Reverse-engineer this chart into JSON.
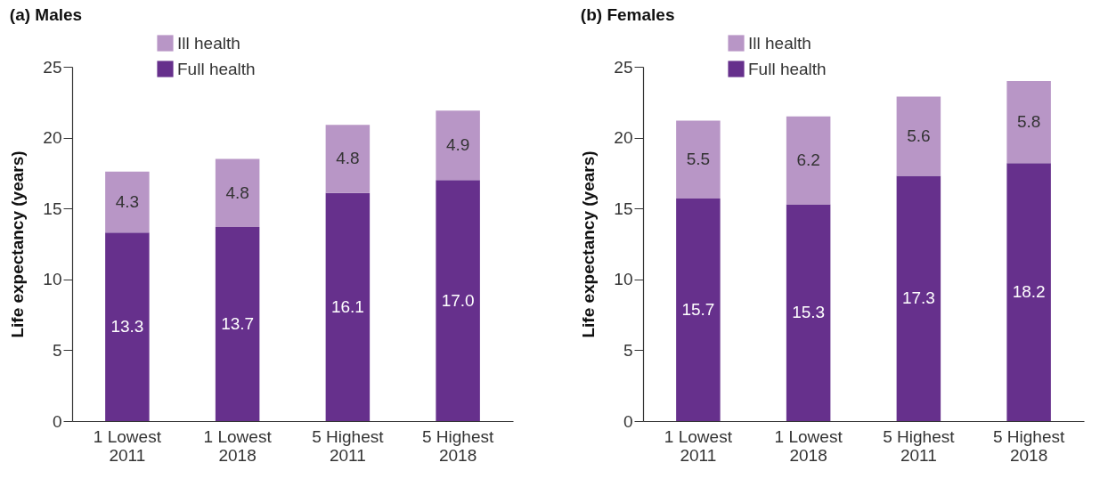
{
  "chart_data": [
    {
      "type": "bar",
      "title": "(a) Males",
      "ylabel": "Life expectancy (years)",
      "categories": [
        "1 Lowest\n2011",
        "1 Lowest\n2018",
        "5 Highest\n2011",
        "5 Highest\n2018"
      ],
      "stacked": true,
      "legend": "top left",
      "ylim": [
        0,
        25
      ],
      "yticks": [
        0,
        5,
        10,
        15,
        20,
        25
      ],
      "series": [
        {
          "name": "Full health",
          "color": "#66308c",
          "values": [
            13.3,
            13.7,
            16.1,
            17.0
          ],
          "value_labels": [
            "13.3",
            "13.7",
            "16.1",
            "17.0"
          ]
        },
        {
          "name": "Ill health",
          "color": "#b896c6",
          "values": [
            4.3,
            4.8,
            4.8,
            4.9
          ],
          "value_labels": [
            "4.3",
            "4.8",
            "4.8",
            "4.9"
          ]
        }
      ]
    },
    {
      "type": "bar",
      "title": "(b) Females",
      "ylabel": "Life expectancy (years)",
      "categories": [
        "1 Lowest\n2011",
        "1 Lowest\n2018",
        "5 Highest\n2011",
        "5 Highest\n2018"
      ],
      "stacked": true,
      "legend": "top left",
      "ylim": [
        0,
        25
      ],
      "yticks": [
        0,
        5,
        10,
        15,
        20,
        25
      ],
      "series": [
        {
          "name": "Full health",
          "color": "#66308c",
          "values": [
            15.7,
            15.3,
            17.3,
            18.2
          ],
          "value_labels": [
            "15.7",
            "15.3",
            "17.3",
            "18.2"
          ]
        },
        {
          "name": "Ill health",
          "color": "#b896c6",
          "values": [
            5.5,
            6.2,
            5.6,
            5.8
          ],
          "value_labels": [
            "5.5",
            "6.2",
            "5.6",
            "5.8"
          ]
        }
      ]
    }
  ]
}
